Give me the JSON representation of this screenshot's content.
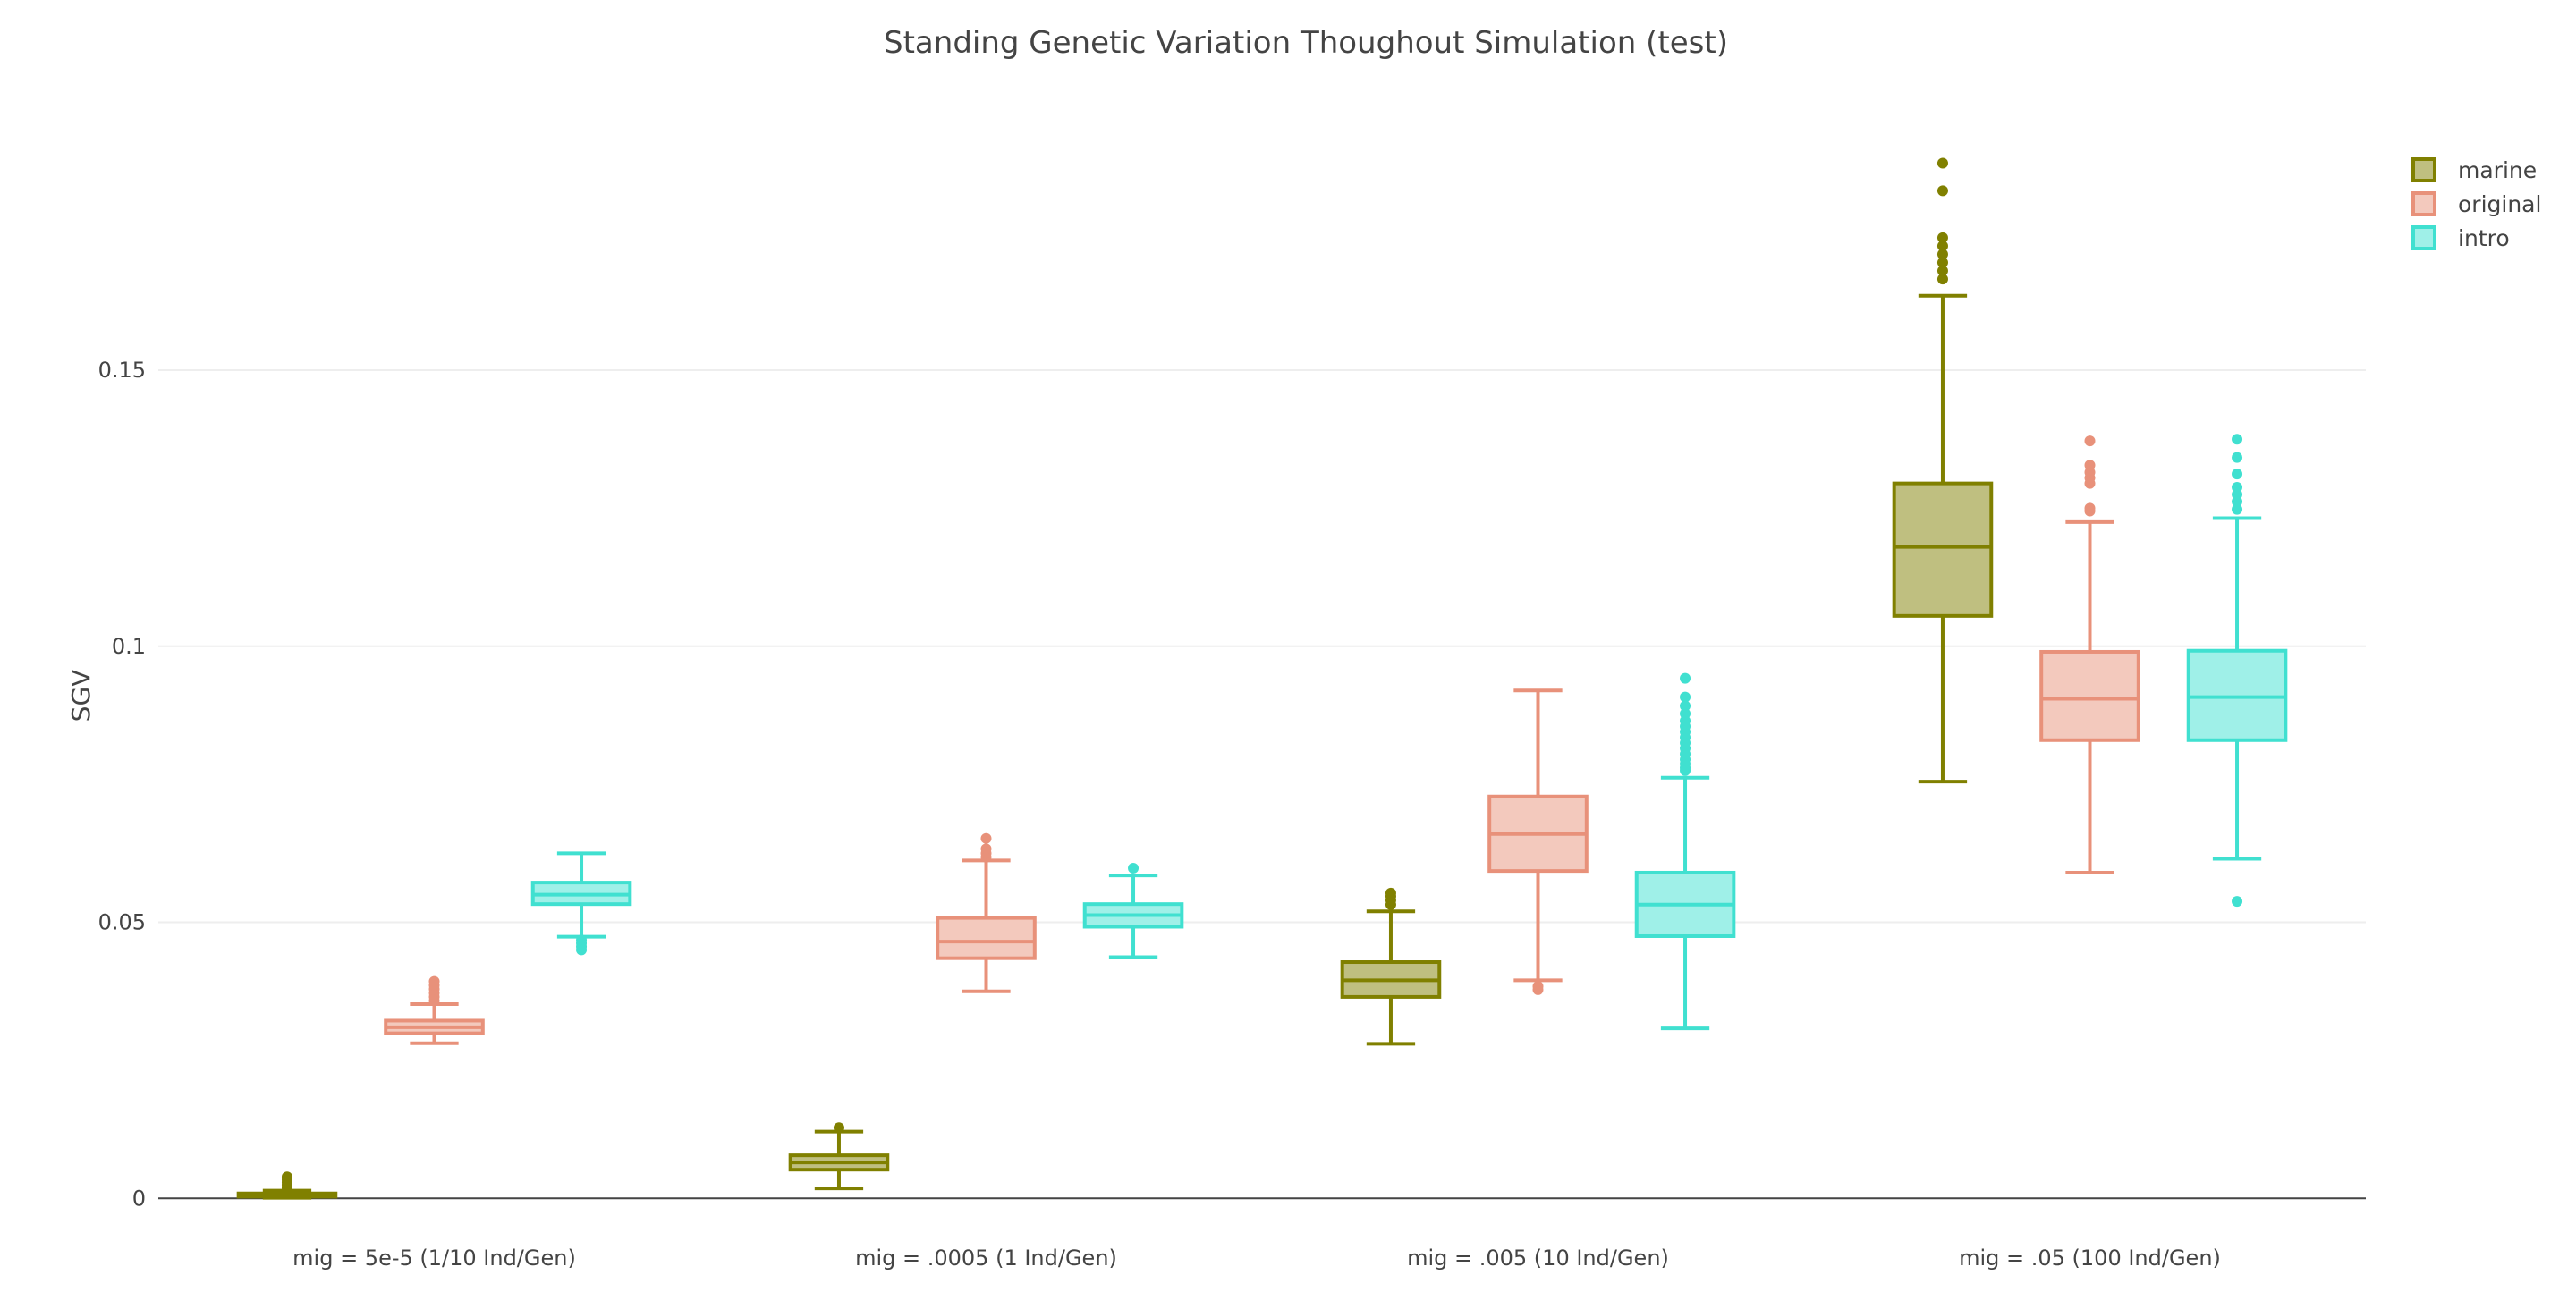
{
  "chart_data": {
    "type": "box",
    "title": "Standing Genetic Variation Thoughout Simulation (test)",
    "xlabel": "",
    "ylabel": "SGV",
    "ylim": [
      -0.004,
      0.196
    ],
    "yticks": [
      0,
      0.05,
      0.1,
      0.15
    ],
    "ytick_labels": [
      "0",
      "0.05",
      "0.1",
      "0.15"
    ],
    "grid": true,
    "legend_position": "top-right",
    "categories": [
      "mig = 5e-5 (1/10 Ind/Gen)",
      "mig = .0005 (1 Ind/Gen)",
      "mig = .005 (10 Ind/Gen)",
      "mig = .05 (100 Ind/Gen)"
    ],
    "series": [
      {
        "name": "marine",
        "color": "#808000",
        "fill": "#bfbf80",
        "boxes": [
          {
            "lowerfence": 0.0001,
            "q1": 0.0003,
            "median": 0.0006,
            "q3": 0.0009,
            "upperfence": 0.0014,
            "outliers": [
              0.0019,
              0.0024,
              0.0029,
              0.0034,
              0.0039
            ]
          },
          {
            "lowerfence": 0.0018,
            "q1": 0.0052,
            "median": 0.0065,
            "q3": 0.0078,
            "upperfence": 0.0121,
            "outliers": [
              0.0128
            ]
          },
          {
            "lowerfence": 0.028,
            "q1": 0.0365,
            "median": 0.0395,
            "q3": 0.0428,
            "upperfence": 0.052,
            "outliers": [
              0.0532,
              0.054,
              0.0547,
              0.0553
            ]
          },
          {
            "lowerfence": 0.0755,
            "q1": 0.1055,
            "median": 0.118,
            "q3": 0.1295,
            "upperfence": 0.1635,
            "outliers": [
              0.1665,
              0.168,
              0.1695,
              0.171,
              0.1725,
              0.174,
              0.1825,
              0.1875
            ]
          }
        ]
      },
      {
        "name": "original",
        "color": "#e8917a",
        "fill": "#f3c9bd",
        "boxes": [
          {
            "lowerfence": 0.0281,
            "q1": 0.0299,
            "median": 0.031,
            "q3": 0.0322,
            "upperfence": 0.0352,
            "outliers": [
              0.0358,
              0.0365,
              0.0372,
              0.0379,
              0.0386,
              0.0393
            ]
          },
          {
            "lowerfence": 0.0375,
            "q1": 0.0435,
            "median": 0.0465,
            "q3": 0.0508,
            "upperfence": 0.0612,
            "outliers": [
              0.0618,
              0.0625,
              0.0633,
              0.0652
            ]
          },
          {
            "lowerfence": 0.0395,
            "q1": 0.0593,
            "median": 0.066,
            "q3": 0.0728,
            "upperfence": 0.092,
            "outliers": [
              0.0378,
              0.0384
            ]
          },
          {
            "lowerfence": 0.059,
            "q1": 0.083,
            "median": 0.0905,
            "q3": 0.099,
            "upperfence": 0.1225,
            "outliers": [
              0.1245,
              0.125,
              0.1295,
              0.1305,
              0.1315,
              0.1328,
              0.1372
            ]
          }
        ]
      },
      {
        "name": "intro",
        "color": "#40e0d0",
        "fill": "#9ff0e8",
        "boxes": [
          {
            "lowerfence": 0.0474,
            "q1": 0.0533,
            "median": 0.055,
            "q3": 0.0572,
            "upperfence": 0.0625,
            "outliers": [
              0.0468,
              0.0462,
              0.0456,
              0.045
            ]
          },
          {
            "lowerfence": 0.0437,
            "q1": 0.0492,
            "median": 0.0513,
            "q3": 0.0533,
            "upperfence": 0.0585,
            "outliers": [
              0.0598
            ]
          },
          {
            "lowerfence": 0.0308,
            "q1": 0.0475,
            "median": 0.0532,
            "q3": 0.059,
            "upperfence": 0.0762,
            "outliers": [
              0.0775,
              0.078,
              0.0787,
              0.0795,
              0.0805,
              0.0815,
              0.0825,
              0.0835,
              0.0845,
              0.0855,
              0.0865,
              0.0878,
              0.0892,
              0.0908,
              0.0942
            ]
          },
          {
            "lowerfence": 0.0615,
            "q1": 0.083,
            "median": 0.0908,
            "q3": 0.0992,
            "upperfence": 0.1232,
            "outliers": [
              0.0538,
              0.1248,
              0.1262,
              0.1275,
              0.1288,
              0.1312,
              0.1342,
              0.1375
            ]
          }
        ]
      }
    ]
  }
}
